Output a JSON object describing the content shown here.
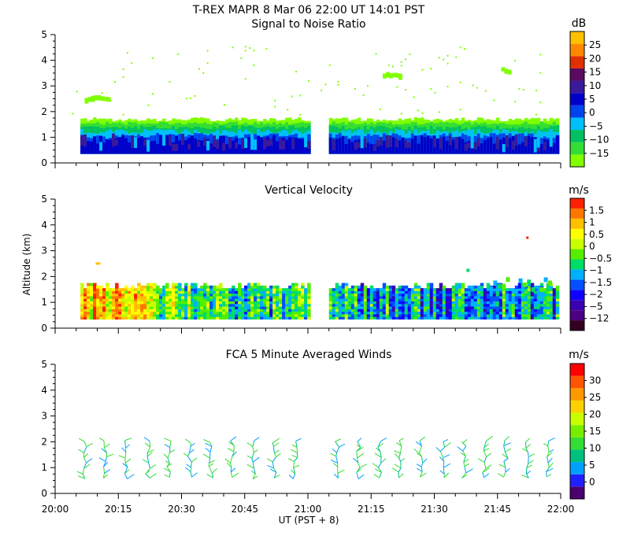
{
  "header": {
    "title": "T-REX   MAPR   8 Mar 06   22:00 UT   14:01   PST"
  },
  "colors": {
    "snr": [
      "#80ff00",
      "#33dd33",
      "#00c060",
      "#00c0ff",
      "#0044ee",
      "#0000c8",
      "#3a1a9a",
      "#5a0a60",
      "#e03000",
      "#ff8800",
      "#ffc000"
    ],
    "vv": [
      "#330022",
      "#4b0082",
      "#3a00b0",
      "#1000ff",
      "#0050ff",
      "#00b0ff",
      "#00dd66",
      "#55ee00",
      "#c8ff00",
      "#ffff00",
      "#ffc000",
      "#ff7700",
      "#ff2000"
    ],
    "wind": [
      "#4b0070",
      "#2020ff",
      "#00a0ff",
      "#00c080",
      "#33dd33",
      "#77ee00",
      "#c8ff00",
      "#ffd000",
      "#ff9900",
      "#ff5500",
      "#ff0000"
    ]
  },
  "chart_data": [
    {
      "id": "snr",
      "type": "heatmap",
      "title": "Signal to Noise Ratio",
      "units": "dB",
      "ylim": [
        0,
        5
      ],
      "yticks": [
        "0",
        "1",
        "2",
        "3",
        "4",
        "5"
      ],
      "colorbar_labels": [
        "25",
        "20",
        "15",
        "10",
        "5",
        "0",
        "−5",
        "−10",
        "−15"
      ],
      "layers": [
        {
          "name": "green-top",
          "top": 1.7
        },
        {
          "name": "cyan",
          "top": 1.3
        },
        {
          "name": "blue",
          "top": 1.05
        },
        {
          "name": "purple-core",
          "top": 0.85
        }
      ],
      "segments": [
        [
          "20:06",
          "21:00"
        ],
        [
          "21:05",
          "21:59"
        ]
      ],
      "floor": 0.35,
      "patches": [
        {
          "t": "20:10",
          "alt": 2.5,
          "w": 8,
          "label": "green patch"
        },
        {
          "t": "21:20",
          "alt": 3.4,
          "w": 6,
          "label": "green patch"
        },
        {
          "t": "21:47",
          "alt": 3.6,
          "w": 3,
          "label": "green patch"
        }
      ]
    },
    {
      "id": "vv",
      "type": "heatmap",
      "title": "Vertical Velocity",
      "units": "m/s",
      "ylabel": "Altitude  (km)",
      "ylim": [
        0,
        5
      ],
      "yticks": [
        "0",
        "1",
        "2",
        "3",
        "4",
        "5"
      ],
      "colorbar_labels": [
        "1.5",
        "1",
        "0.5",
        "0",
        "−0.5",
        "−1",
        "−1.5",
        "−2",
        "−5",
        "−12"
      ],
      "segments": [
        [
          "20:06",
          "21:00"
        ],
        [
          "21:05",
          "21:59"
        ]
      ],
      "top": 1.6,
      "floor": 0.35
    },
    {
      "id": "wind",
      "type": "scatter",
      "title": "FCA 5 Minute Averaged Winds",
      "units": "m/s",
      "ylim": [
        0,
        5
      ],
      "yticks": [
        "0",
        "1",
        "2",
        "3",
        "4",
        "5"
      ],
      "colorbar_labels": [
        "30",
        "25",
        "20",
        "15",
        "10",
        "5",
        "0"
      ],
      "times": [
        "20:07",
        "20:12",
        "20:17",
        "20:22",
        "20:27",
        "20:32",
        "20:37",
        "20:42",
        "20:47",
        "20:52",
        "20:57",
        "21:07",
        "21:12",
        "21:17",
        "21:22",
        "21:27",
        "21:32",
        "21:37",
        "21:42",
        "21:47",
        "21:52",
        "21:57"
      ],
      "altitudes": [
        0.6,
        0.8,
        1.0,
        1.2,
        1.4,
        1.6,
        1.8,
        2.0
      ],
      "speed_range": [
        5,
        15
      ]
    }
  ],
  "xaxis": {
    "xlim": [
      "20:00",
      "22:00"
    ],
    "ticks": [
      "20:00",
      "20:15",
      "20:30",
      "20:45",
      "21:00",
      "21:15",
      "21:30",
      "21:45",
      "22:00"
    ],
    "label": "UT   (PST + 8)"
  }
}
